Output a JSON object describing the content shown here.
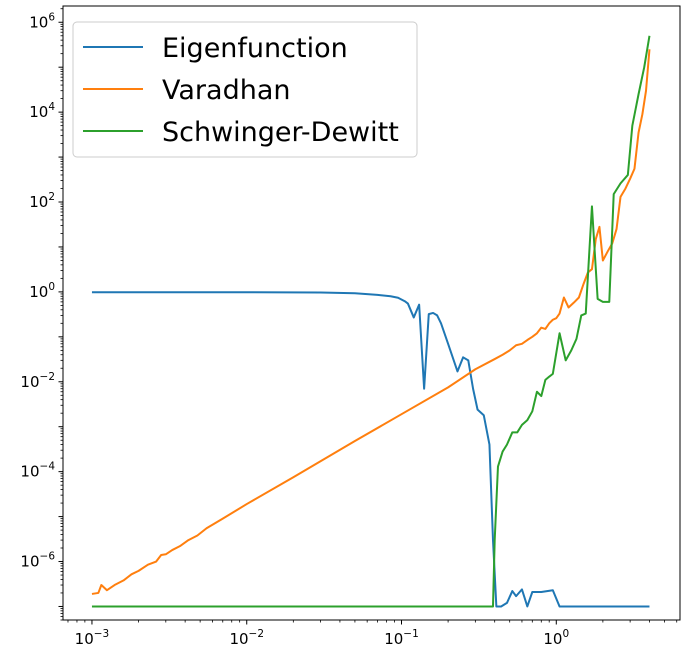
{
  "chart_data": {
    "type": "line",
    "xscale": "log",
    "yscale": "log",
    "xlim": [
      0.00065,
      6.3
    ],
    "ylim": [
      5e-08,
      2300000.0
    ],
    "grid": false,
    "legend_position": "top-left",
    "xticks": [
      {
        "value": 0.001,
        "base": "10",
        "exp": "−3"
      },
      {
        "value": 0.01,
        "base": "10",
        "exp": "−2"
      },
      {
        "value": 0.1,
        "base": "10",
        "exp": "−1"
      },
      {
        "value": 1,
        "base": "10",
        "exp": "0"
      }
    ],
    "yticks": [
      {
        "value": 1e-06,
        "base": "10",
        "exp": "−6"
      },
      {
        "value": 0.0001,
        "base": "10",
        "exp": "−4"
      },
      {
        "value": 0.01,
        "base": "10",
        "exp": "−2"
      },
      {
        "value": 1,
        "base": "10",
        "exp": "0"
      },
      {
        "value": 100,
        "base": "10",
        "exp": "2"
      },
      {
        "value": 10000,
        "base": "10",
        "exp": "4"
      },
      {
        "value": 1000000,
        "base": "10",
        "exp": "6"
      }
    ],
    "series": [
      {
        "name": "Eigenfunction",
        "color": "#1f77b4",
        "points": [
          [
            0.001,
            0.98
          ],
          [
            0.01,
            0.98
          ],
          [
            0.03,
            0.97
          ],
          [
            0.05,
            0.93
          ],
          [
            0.07,
            0.86
          ],
          [
            0.085,
            0.8
          ],
          [
            0.095,
            0.74
          ],
          [
            0.105,
            0.62
          ],
          [
            0.11,
            0.55
          ],
          [
            0.12,
            0.27
          ],
          [
            0.13,
            0.52
          ],
          [
            0.14,
            0.007
          ],
          [
            0.15,
            0.32
          ],
          [
            0.16,
            0.34
          ],
          [
            0.17,
            0.3
          ],
          [
            0.18,
            0.2
          ],
          [
            0.2,
            0.07
          ],
          [
            0.23,
            0.017
          ],
          [
            0.25,
            0.035
          ],
          [
            0.27,
            0.03
          ],
          [
            0.29,
            0.007
          ],
          [
            0.31,
            0.0024
          ],
          [
            0.34,
            0.0018
          ],
          [
            0.37,
            0.0004
          ],
          [
            0.39,
            3e-06
          ],
          [
            0.41,
            1e-07
          ],
          [
            0.44,
            1e-07
          ],
          [
            0.48,
            1.2e-07
          ],
          [
            0.52,
            2.2e-07
          ],
          [
            0.55,
            1.7e-07
          ],
          [
            0.6,
            2.4e-07
          ],
          [
            0.65,
            1e-07
          ],
          [
            0.7,
            2.1e-07
          ],
          [
            0.8,
            2.1e-07
          ],
          [
            0.95,
            2.3e-07
          ],
          [
            1.05,
            1e-07
          ],
          [
            2.0,
            1e-07
          ],
          [
            4.0,
            1e-07
          ]
        ]
      },
      {
        "name": "Varadhan",
        "color": "#ff7f0e",
        "points": [
          [
            0.001,
            1.9e-07
          ],
          [
            0.0011,
            2e-07
          ],
          [
            0.00115,
            3e-07
          ],
          [
            0.00125,
            2.3e-07
          ],
          [
            0.0014,
            3e-07
          ],
          [
            0.0016,
            3.8e-07
          ],
          [
            0.0018,
            5.2e-07
          ],
          [
            0.002,
            6.2e-07
          ],
          [
            0.0023,
            8.5e-07
          ],
          [
            0.0026,
            1e-06
          ],
          [
            0.0028,
            1.4e-06
          ],
          [
            0.003,
            1.45e-06
          ],
          [
            0.0033,
            1.8e-06
          ],
          [
            0.0037,
            2.2e-06
          ],
          [
            0.0042,
            3e-06
          ],
          [
            0.0048,
            3.8e-06
          ],
          [
            0.0055,
            5.5e-06
          ],
          [
            0.007,
            9e-06
          ],
          [
            0.01,
            1.9e-05
          ],
          [
            0.02,
            7.5e-05
          ],
          [
            0.05,
            0.00048
          ],
          [
            0.1,
            0.0019
          ],
          [
            0.2,
            0.0075
          ],
          [
            0.3,
            0.019
          ],
          [
            0.4,
            0.032
          ],
          [
            0.45,
            0.04
          ],
          [
            0.5,
            0.05
          ],
          [
            0.55,
            0.065
          ],
          [
            0.6,
            0.07
          ],
          [
            0.65,
            0.085
          ],
          [
            0.7,
            0.1
          ],
          [
            0.75,
            0.12
          ],
          [
            0.8,
            0.16
          ],
          [
            0.85,
            0.15
          ],
          [
            0.9,
            0.2
          ],
          [
            0.95,
            0.24
          ],
          [
            1.0,
            0.26
          ],
          [
            1.05,
            0.33
          ],
          [
            1.12,
            0.75
          ],
          [
            1.2,
            0.45
          ],
          [
            1.3,
            0.58
          ],
          [
            1.4,
            0.75
          ],
          [
            1.5,
            1.5
          ],
          [
            1.6,
            2.7
          ],
          [
            1.7,
            3.2
          ],
          [
            1.8,
            15
          ],
          [
            1.9,
            28
          ],
          [
            2.0,
            5
          ],
          [
            2.15,
            8
          ],
          [
            2.3,
            12
          ],
          [
            2.45,
            25
          ],
          [
            2.6,
            130
          ],
          [
            2.8,
            200
          ],
          [
            3.0,
            330
          ],
          [
            3.2,
            550
          ],
          [
            3.4,
            3500
          ],
          [
            3.6,
            9000
          ],
          [
            3.8,
            30000
          ],
          [
            4.0,
            250000
          ]
        ]
      },
      {
        "name": "Schwinger-Dewitt",
        "color": "#2ca02c",
        "points": [
          [
            0.001,
            1e-07
          ],
          [
            0.2,
            1e-07
          ],
          [
            0.39,
            1e-07
          ],
          [
            0.4,
            3e-06
          ],
          [
            0.42,
            0.00013
          ],
          [
            0.45,
            0.00028
          ],
          [
            0.48,
            0.0004
          ],
          [
            0.52,
            0.00075
          ],
          [
            0.56,
            0.00075
          ],
          [
            0.6,
            0.0011
          ],
          [
            0.65,
            0.0014
          ],
          [
            0.7,
            0.0022
          ],
          [
            0.75,
            0.006
          ],
          [
            0.8,
            0.0048
          ],
          [
            0.85,
            0.011
          ],
          [
            0.9,
            0.013
          ],
          [
            0.95,
            0.015
          ],
          [
            1.05,
            0.12
          ],
          [
            1.15,
            0.03
          ],
          [
            1.25,
            0.05
          ],
          [
            1.35,
            0.09
          ],
          [
            1.45,
            0.3
          ],
          [
            1.55,
            0.33
          ],
          [
            1.7,
            80
          ],
          [
            1.85,
            0.7
          ],
          [
            2.0,
            0.6
          ],
          [
            2.2,
            0.6
          ],
          [
            2.35,
            150
          ],
          [
            2.6,
            260
          ],
          [
            2.9,
            400
          ],
          [
            3.1,
            5000
          ],
          [
            3.4,
            25000
          ],
          [
            3.7,
            100000
          ],
          [
            4.0,
            500000
          ]
        ]
      }
    ]
  }
}
